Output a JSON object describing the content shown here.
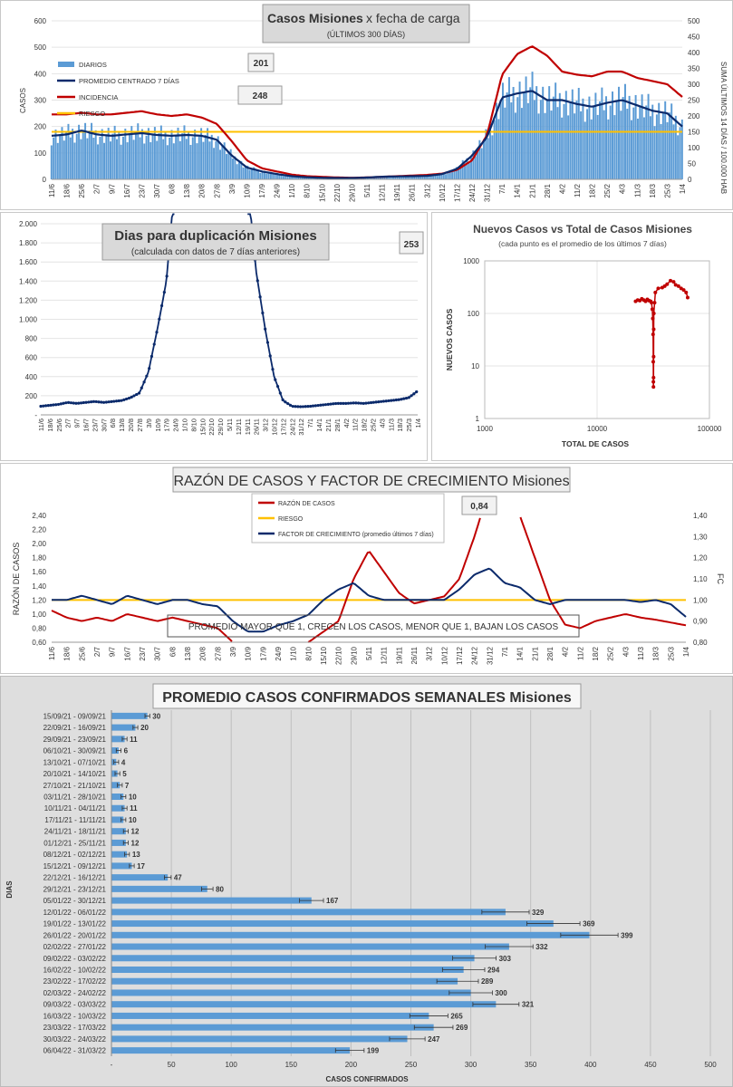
{
  "colors": {
    "diarios": "#5b9bd5",
    "promedio": "#0b2a6b",
    "incidencia": "#c00000",
    "riesgo": "#ffc000",
    "razon": "#c00000",
    "factor": "#0b2a6b",
    "bar": "#5b9bd5",
    "dup": "#0b2a6b",
    "scatter": "#c00000"
  },
  "chart_data": [
    {
      "type": "bar",
      "title": "Casos Misiones",
      "title2": "x fecha de carga",
      "subtitle": "(ÚLTIMOS 300 DÍAS)",
      "ylabel": "CASOS",
      "y2label": "SUMA ÚLTIMOS 14 DÍAS / 100.000 HAB",
      "ylim": [
        0,
        600
      ],
      "y2lim": [
        0,
        500
      ],
      "yticks": [
        "0",
        "100",
        "200",
        "300",
        "400",
        "500",
        "600"
      ],
      "y2ticks": [
        "0",
        "50",
        "100",
        "150",
        "200",
        "250",
        "300",
        "350",
        "400",
        "450",
        "500"
      ],
      "x_ticks": [
        "11/6",
        "18/6",
        "25/6",
        "2/7",
        "9/7",
        "16/7",
        "23/7",
        "30/7",
        "6/8",
        "13/8",
        "20/8",
        "27/8",
        "3/9",
        "10/9",
        "17/9",
        "24/9",
        "1/10",
        "8/10",
        "15/10",
        "22/10",
        "29/10",
        "5/11",
        "12/11",
        "19/11",
        "26/11",
        "3/12",
        "10/12",
        "17/12",
        "24/12",
        "31/12",
        "7/1",
        "14/1",
        "21/1",
        "28/1",
        "4/2",
        "11/2",
        "18/2",
        "25/2",
        "4/3",
        "11/3",
        "18/3",
        "25/3",
        "1/4"
      ],
      "legend": [
        "DIARIOS",
        "PROMEDIO CENTRADO 7 DÍAS",
        "INCIDENCIA",
        "RIESGO"
      ],
      "annotations": [
        "201",
        "248"
      ],
      "riesgo": 180,
      "promedio_weekly": [
        165,
        170,
        185,
        170,
        165,
        170,
        175,
        168,
        165,
        168,
        165,
        150,
        90,
        45,
        30,
        20,
        12,
        8,
        6,
        5,
        5,
        7,
        10,
        11,
        12,
        13,
        20,
        40,
        90,
        160,
        310,
        325,
        335,
        300,
        300,
        285,
        275,
        290,
        300,
        280,
        260,
        250,
        200
      ],
      "incidencia_weekly": [
        205,
        205,
        210,
        205,
        205,
        210,
        215,
        205,
        200,
        205,
        195,
        175,
        120,
        60,
        35,
        25,
        15,
        10,
        8,
        6,
        5,
        6,
        8,
        10,
        12,
        14,
        18,
        30,
        60,
        140,
        330,
        395,
        420,
        390,
        340,
        330,
        325,
        340,
        340,
        320,
        310,
        300,
        260
      ]
    },
    {
      "type": "line",
      "title": "Dias para duplicación Misiones",
      "subtitle": "(calculada con datos de 7 días anteriores)",
      "annotation": "253",
      "ylim": [
        0,
        2000
      ],
      "yticks": [
        "-",
        "200",
        "400",
        "600",
        "800",
        "1.000",
        "1.200",
        "1.400",
        "1.600",
        "1.800",
        "2.000"
      ],
      "x_ticks": [
        "11/6",
        "18/6",
        "25/6",
        "2/7",
        "9/7",
        "16/7",
        "23/7",
        "30/7",
        "6/8",
        "13/8",
        "20/8",
        "27/8",
        "3/9",
        "10/9",
        "17/9",
        "24/9",
        "1/10",
        "8/10",
        "15/10",
        "22/10",
        "29/10",
        "5/11",
        "12/11",
        "19/11",
        "26/11",
        "3/12",
        "10/12",
        "17/12",
        "24/12",
        "31/12",
        "7/1",
        "14/1",
        "21/1",
        "28/1",
        "4/2",
        "11/2",
        "18/2",
        "25/2",
        "4/3",
        "11/3",
        "18/3",
        "25/3",
        "1/4"
      ],
      "weekly": [
        90,
        100,
        110,
        130,
        120,
        130,
        140,
        130,
        140,
        150,
        180,
        230,
        450,
        900,
        1400,
        2500,
        null,
        null,
        null,
        null,
        null,
        null,
        null,
        2500,
        1500,
        900,
        400,
        150,
        90,
        85,
        90,
        100,
        110,
        120,
        120,
        125,
        120,
        130,
        140,
        150,
        160,
        180,
        250
      ]
    },
    {
      "type": "scatter",
      "title": "Nuevos Casos vs Total de Casos Misiones",
      "subtitle": "(cada punto es el promedio de los últimos 7 días)",
      "xlabel": "TOTAL DE CASOS",
      "ylabel": "NUEVOS CASOS",
      "xscale": "log",
      "yscale": "log",
      "xlim": [
        1000,
        100000
      ],
      "ylim": [
        1,
        1000
      ],
      "xticks": [
        "1000",
        "10000",
        "100000"
      ],
      "yticks": [
        "1",
        "10",
        "100",
        "1000"
      ],
      "x": [
        22000,
        23000,
        24000,
        25000,
        26000,
        27000,
        28000,
        29000,
        30000,
        30500,
        31000,
        31300,
        31500,
        31600,
        31700,
        31750,
        31800,
        31850,
        31900,
        32000,
        32500,
        33000,
        35000,
        38000,
        40000,
        42000,
        45000,
        48000,
        50000,
        53000,
        56000,
        59000,
        62000,
        64000
      ],
      "y": [
        170,
        180,
        175,
        190,
        180,
        170,
        185,
        175,
        170,
        160,
        120,
        80,
        40,
        12,
        5,
        4,
        6,
        15,
        50,
        100,
        160,
        250,
        300,
        310,
        330,
        360,
        420,
        400,
        350,
        330,
        300,
        280,
        250,
        200
      ]
    },
    {
      "type": "line",
      "title": "RAZÓN DE CASOS Y FACTOR DE CRECIMIENTO Misiones",
      "ylabel": "RAZÓN DE CASOS",
      "y2label": "FC",
      "ylim": [
        0.6,
        2.4
      ],
      "y2lim": [
        0.8,
        1.4
      ],
      "yticks": [
        "0,60",
        "0,80",
        "1,00",
        "1,20",
        "1,40",
        "1,60",
        "1,80",
        "2,00",
        "2,20",
        "2,40"
      ],
      "y2ticks": [
        "0,80",
        "0,90",
        "1,00",
        "1,10",
        "1,20",
        "1,30",
        "1,40"
      ],
      "legend": [
        "RAZÓN DE CASOS",
        "RIESGO",
        "FACTOR DE CRECIMIENTO (promedio últimos 7 días)"
      ],
      "annotation": "0,84",
      "note": "PROMEDIO MAYOR QUE 1, CRECEN LOS CASOS, MENOR QUE 1, BAJAN LOS CASOS",
      "riesgo": 1.0,
      "x_ticks": [
        "11/6",
        "18/6",
        "25/6",
        "2/7",
        "9/7",
        "16/7",
        "23/7",
        "30/7",
        "6/8",
        "13/8",
        "20/8",
        "27/8",
        "3/9",
        "10/9",
        "17/9",
        "24/9",
        "1/10",
        "8/10",
        "15/10",
        "22/10",
        "29/10",
        "5/11",
        "12/11",
        "19/11",
        "26/11",
        "3/12",
        "10/12",
        "17/12",
        "24/12",
        "31/12",
        "7/1",
        "14/1",
        "21/1",
        "28/1",
        "4/2",
        "11/2",
        "18/2",
        "25/2",
        "4/3",
        "11/3",
        "18/3",
        "25/3",
        "1/4"
      ],
      "razon_weekly": [
        1.05,
        0.95,
        0.9,
        0.95,
        0.9,
        1.0,
        0.95,
        0.9,
        0.95,
        0.9,
        0.85,
        0.8,
        0.6,
        0.5,
        0.45,
        0.5,
        0.55,
        0.6,
        0.75,
        0.9,
        1.5,
        1.9,
        1.6,
        1.3,
        1.15,
        1.2,
        1.25,
        1.5,
        2.1,
        2.8,
        2.6,
        2.4,
        1.8,
        1.2,
        0.85,
        0.8,
        0.9,
        0.95,
        1.0,
        0.95,
        0.92,
        0.88,
        0.84
      ],
      "factor_weekly": [
        1.0,
        1.0,
        1.02,
        1.0,
        0.98,
        1.02,
        1.0,
        0.98,
        1.0,
        1.0,
        0.98,
        0.97,
        0.9,
        0.85,
        0.85,
        0.88,
        0.9,
        0.93,
        1.0,
        1.05,
        1.08,
        1.02,
        1.0,
        1.0,
        1.0,
        1.0,
        1.0,
        1.05,
        1.12,
        1.15,
        1.08,
        1.06,
        1.0,
        0.98,
        1.0,
        1.0,
        1.0,
        1.0,
        1.0,
        0.99,
        1.0,
        0.98,
        0.92
      ]
    },
    {
      "type": "bar",
      "title": "PROMEDIO CASOS CONFIRMADOS SEMANALES Misiones",
      "xlabel": "CASOS CONFIRMADOS",
      "ylabel": "DIAS",
      "xlim": [
        0,
        500
      ],
      "xticks": [
        "-",
        "50",
        "100",
        "150",
        "200",
        "250",
        "300",
        "350",
        "400",
        "450",
        "500"
      ],
      "categories": [
        "15/09/21 - 09/09/21",
        "22/09/21 - 16/09/21",
        "29/09/21 - 23/09/21",
        "06/10/21 - 30/09/21",
        "13/10/21 - 07/10/21",
        "20/10/21 - 14/10/21",
        "27/10/21 - 21/10/21",
        "03/11/21 - 28/10/21",
        "10/11/21 - 04/11/21",
        "17/11/21 - 11/11/21",
        "24/11/21 - 18/11/21",
        "01/12/21 - 25/11/21",
        "08/12/21 - 02/12/21",
        "15/12/21 - 09/12/21",
        "22/12/21 - 16/12/21",
        "29/12/21 - 23/12/21",
        "05/01/22 - 30/12/21",
        "12/01/22 - 06/01/22",
        "19/01/22 - 13/01/22",
        "26/01/22 - 20/01/22",
        "02/02/22 - 27/01/22",
        "09/02/22 - 03/02/22",
        "16/02/22 - 10/02/22",
        "23/02/22 - 17/02/22",
        "02/03/22 - 24/02/22",
        "09/03/22 - 03/03/22",
        "16/03/22 - 10/03/22",
        "23/03/22 - 17/03/22",
        "30/03/22 - 24/03/22",
        "06/04/22 - 31/03/22"
      ],
      "values": [
        30,
        20,
        11,
        6,
        4,
        5,
        7,
        10,
        11,
        10,
        12,
        12,
        13,
        17,
        47,
        80,
        167,
        329,
        369,
        399,
        332,
        303,
        294,
        289,
        300,
        321,
        265,
        269,
        247,
        199
      ],
      "labels": [
        "30",
        "20",
        "11",
        "6",
        "4",
        "5",
        "7",
        "10",
        "11",
        "10",
        "12",
        "12",
        "13",
        "17",
        "47",
        "80",
        "167",
        "329",
        "369",
        "399",
        "332",
        "303",
        "294",
        "289",
        "300",
        "321",
        "265",
        "269",
        "247",
        "199"
      ]
    }
  ]
}
